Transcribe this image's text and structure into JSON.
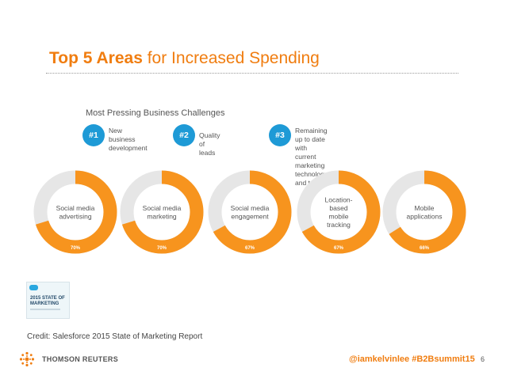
{
  "slide": {
    "title_bold": "Top 5 Areas",
    "title_rest": " for Increased Spending",
    "panel_title": "Most Pressing Business Challenges",
    "challenges": [
      {
        "rank": "#1",
        "text": "New business\ndevelopment"
      },
      {
        "rank": "#2",
        "text": "Quality of leads"
      },
      {
        "rank": "#3",
        "text": "Remaining up to date with current\nmarketing technology and trends"
      }
    ],
    "report_title": "2015 STATE OF\nMARKETING",
    "credit": "Credit: Salesforce 2015 State of Marketing Report",
    "company": "THOMSON REUTERS",
    "social": "@iamkelvinlee  #B2Bsummit15",
    "page_number": "6"
  },
  "colors": {
    "accent": "#f07d10",
    "donut_orange": "#f7941e",
    "donut_grey": "#e6e6e6",
    "badge_blue": "#1e9ad6"
  },
  "chart_data": {
    "type": "pie",
    "title": "Top 5 Areas for Increased Spending",
    "categories": [
      "Social media\nadvertising",
      "Social media\nmarketing",
      "Social media\nengagement",
      "Location-\nbased\nmobile\ntracking",
      "Mobile\napplications"
    ],
    "values": [
      70,
      70,
      67,
      67,
      66
    ],
    "value_labels": [
      "70%",
      "70%",
      "67%",
      "67%",
      "66%"
    ]
  }
}
